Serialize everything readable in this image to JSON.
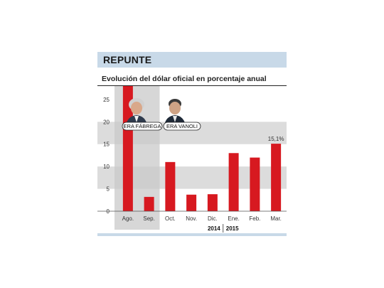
{
  "header": {
    "title": "REPUNTE"
  },
  "chart_data": {
    "type": "bar",
    "title": "Evolución del dólar oficial en porcentaje anual",
    "categories": [
      "Ago.",
      "Sep.",
      "Oct.",
      "Nov.",
      "Dic.",
      "Ene.",
      "Feb.",
      "Mar."
    ],
    "values": [
      28,
      3.2,
      11,
      3.7,
      3.8,
      13,
      12,
      15.1
    ],
    "yticks": [
      "0",
      "5",
      "10",
      "15",
      "20",
      "25"
    ],
    "ylim": [
      0,
      28
    ],
    "years": [
      "2014",
      "2015"
    ],
    "value_label": "15,1%",
    "annotations": [
      "ERA FÁBREGA",
      "ERA VANOLI"
    ],
    "bar_color": "#d71920",
    "band_color": "#dcdcdc",
    "highlight_color": "#c9c9c9"
  }
}
